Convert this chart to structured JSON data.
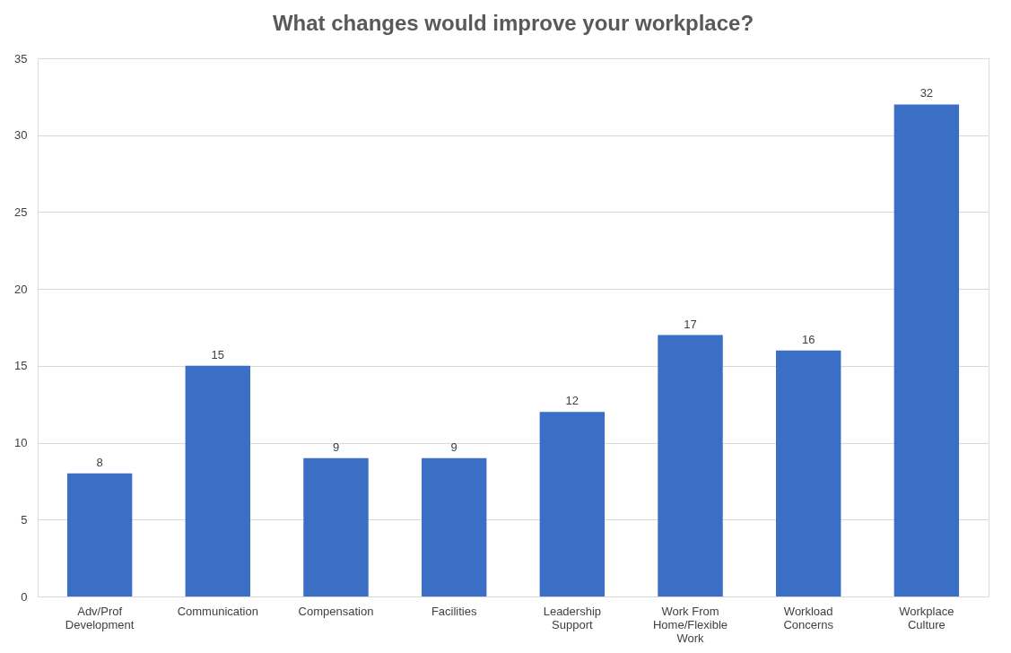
{
  "chart_data": {
    "type": "bar",
    "title": "What changes would improve your workplace?",
    "categories": [
      "Adv/Prof Development",
      "Communication",
      "Compensation",
      "Facilities",
      "Leadership Support",
      "Work From Home/Flexible Work",
      "Workload Concerns",
      "Workplace Culture"
    ],
    "values": [
      8,
      15,
      9,
      9,
      12,
      17,
      16,
      32
    ],
    "color": "#3b6fc6",
    "ylim": [
      0,
      35
    ],
    "yticks": [
      0,
      5,
      10,
      15,
      20,
      25,
      30,
      35
    ],
    "grid": "y",
    "data_labels": true
  }
}
